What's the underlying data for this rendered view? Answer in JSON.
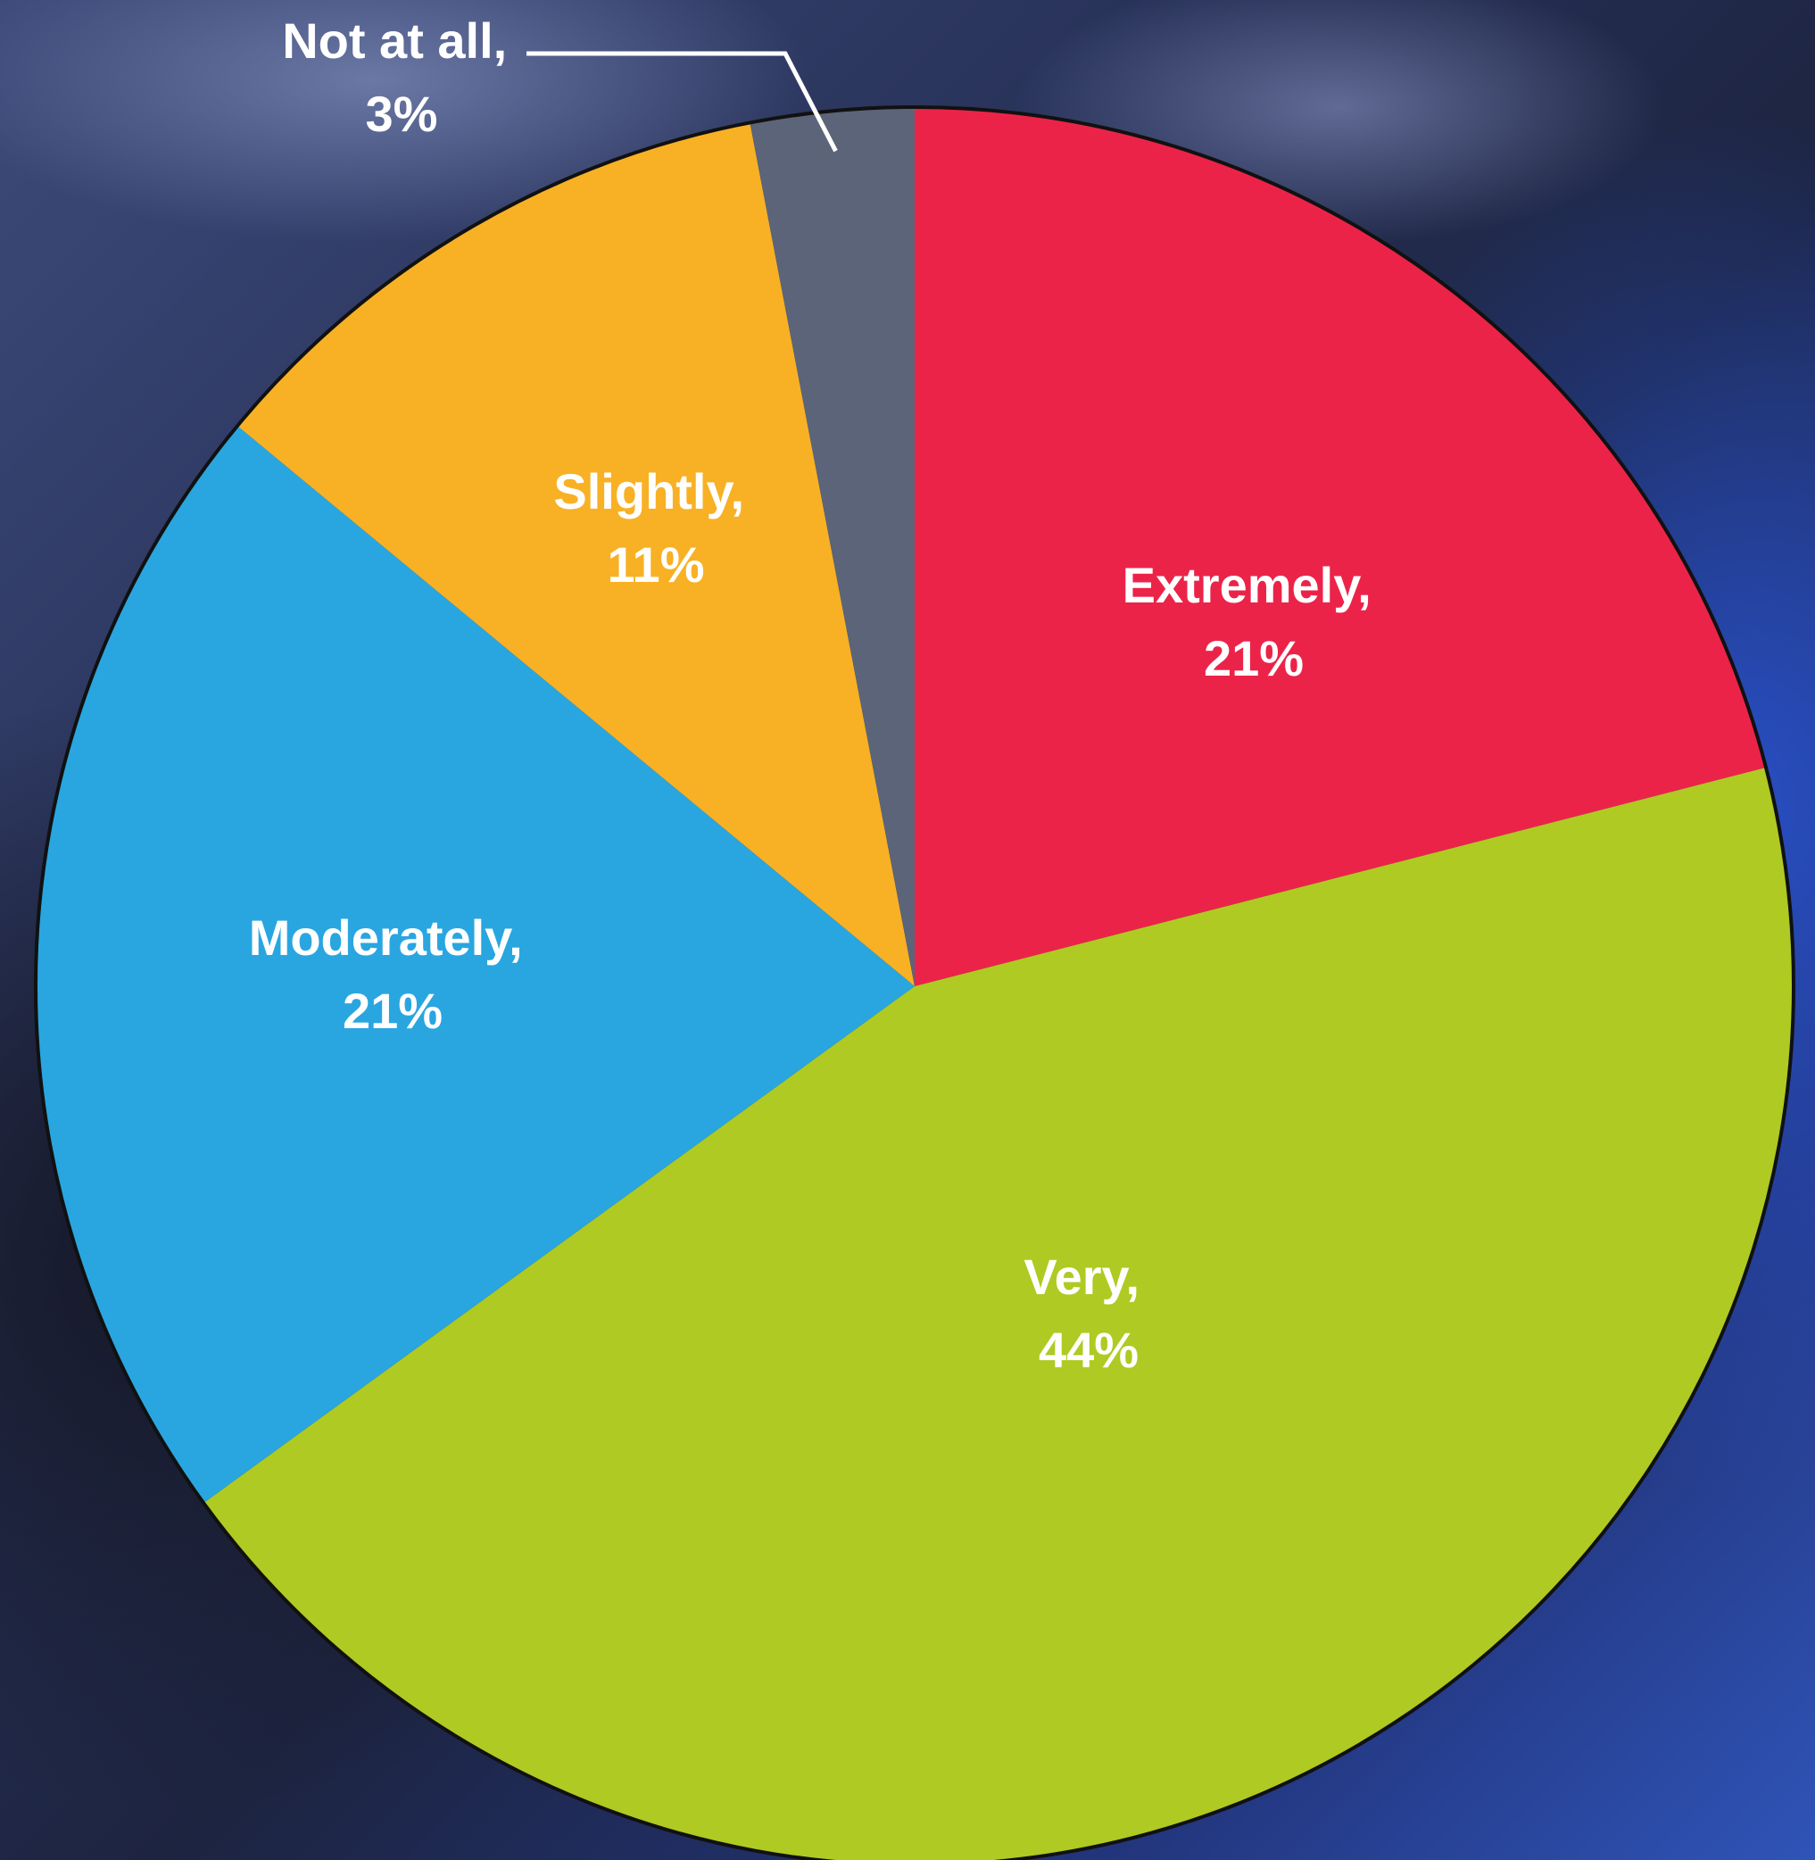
{
  "chart_data": {
    "type": "pie",
    "slices": [
      {
        "label": "Extremely,",
        "value_text": "21%",
        "value": 21,
        "color": "#ec2349"
      },
      {
        "label": "Very,",
        "value_text": "44%",
        "value": 44,
        "color": "#afca22"
      },
      {
        "label": "Moderately,",
        "value_text": "21%",
        "value": 21,
        "color": "#29a6e0"
      },
      {
        "label": "Slightly,",
        "value_text": "11%",
        "value": 11,
        "color": "#f8b124"
      },
      {
        "label": "Not at all,",
        "value_text": "3%",
        "value": 3,
        "color": "#5c6479"
      }
    ],
    "start_angle_deg": 0,
    "direction": "clockwise",
    "title": "",
    "legend": "none"
  }
}
